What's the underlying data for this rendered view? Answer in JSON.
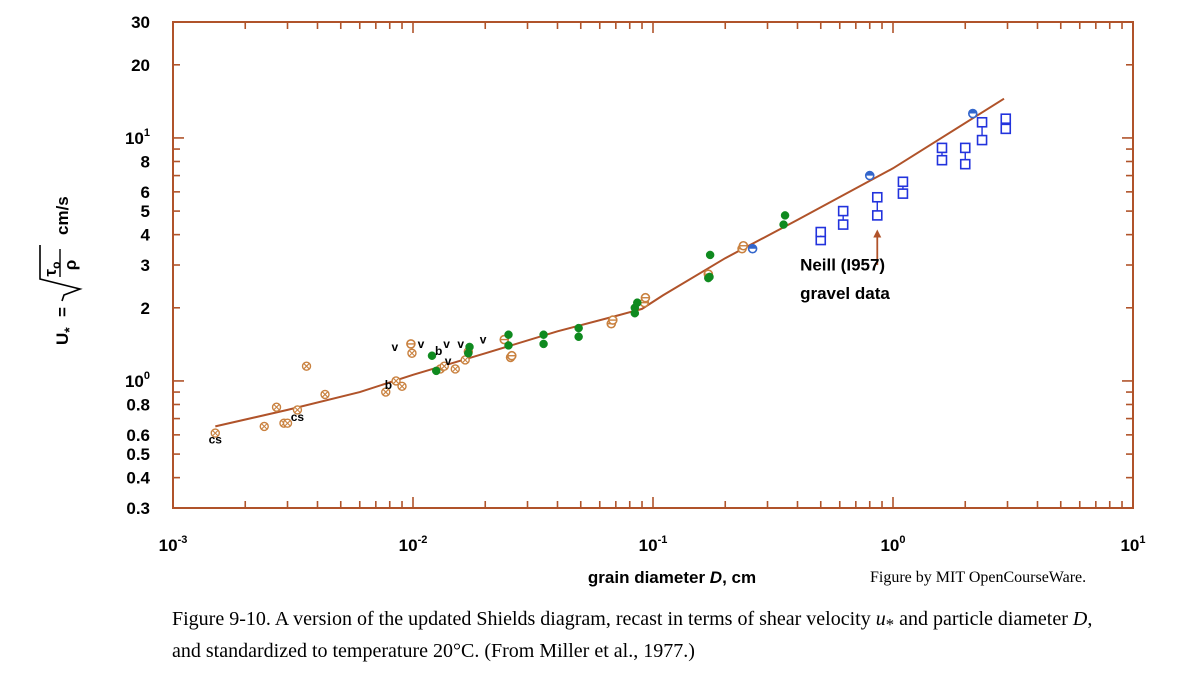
{
  "chart_data": {
    "type": "scatter",
    "x_scale": "log",
    "y_scale": "log",
    "xlim": [
      0.001,
      10
    ],
    "ylim": [
      0.3,
      30
    ],
    "xlabel_prefix": "grain diameter ",
    "xlabel_var": "D",
    "xlabel_unit": ", cm",
    "ylabel_lhs": "U",
    "ylabel_sub": "*",
    "ylabel_tau": "τ",
    "ylabel_tau_sub": "o",
    "ylabel_rho": "ρ",
    "ylabel_unit": "cm/s",
    "x_tick_labels": [
      {
        "value": 0.001,
        "base": "10",
        "exp": "-3"
      },
      {
        "value": 0.01,
        "base": "10",
        "exp": "-2"
      },
      {
        "value": 0.1,
        "base": "10",
        "exp": "-1"
      },
      {
        "value": 1,
        "base": "10",
        "exp": "0"
      },
      {
        "value": 10,
        "base": "10",
        "exp": "1"
      }
    ],
    "y_tick_labels": [
      {
        "value": 0.3,
        "text": "0.3"
      },
      {
        "value": 0.4,
        "text": "0.4"
      },
      {
        "value": 0.5,
        "text": "0.5"
      },
      {
        "value": 0.6,
        "text": "0.6"
      },
      {
        "value": 0.8,
        "text": "0.8"
      },
      {
        "value": 1,
        "base": "10",
        "exp": "0"
      },
      {
        "value": 2,
        "text": "2"
      },
      {
        "value": 3,
        "text": "3"
      },
      {
        "value": 4,
        "text": "4"
      },
      {
        "value": 5,
        "text": "5"
      },
      {
        "value": 6,
        "text": "6"
      },
      {
        "value": 8,
        "text": "8"
      },
      {
        "value": 10,
        "base": "10",
        "exp": "1"
      },
      {
        "value": 20,
        "text": "20"
      },
      {
        "value": 30,
        "text": "30"
      }
    ],
    "curve": {
      "color": "#b0532a",
      "points": [
        [
          0.0015,
          0.65
        ],
        [
          0.003,
          0.76
        ],
        [
          0.006,
          0.9
        ],
        [
          0.01,
          1.06
        ],
        [
          0.02,
          1.3
        ],
        [
          0.04,
          1.6
        ],
        [
          0.07,
          1.85
        ],
        [
          0.09,
          1.98
        ],
        [
          0.11,
          2.25
        ],
        [
          0.2,
          3.2
        ],
        [
          0.4,
          4.6
        ],
        [
          1,
          7.5
        ],
        [
          2.9,
          14.5
        ]
      ]
    },
    "series": [
      {
        "marker": "circle-x",
        "color": "#c9813f",
        "points": [
          [
            0.0015,
            0.61
          ],
          [
            0.0024,
            0.65
          ],
          [
            0.0027,
            0.78
          ],
          [
            0.0029,
            0.67
          ],
          [
            0.003,
            0.67
          ],
          [
            0.0033,
            0.76
          ],
          [
            0.0036,
            1.15
          ],
          [
            0.0043,
            0.88
          ],
          [
            0.0077,
            0.9
          ],
          [
            0.0085,
            1.0
          ],
          [
            0.009,
            0.95
          ],
          [
            0.0099,
            1.3
          ],
          [
            0.013,
            1.12
          ],
          [
            0.0135,
            1.15
          ],
          [
            0.015,
            1.12
          ],
          [
            0.0165,
            1.22
          ],
          [
            0.017,
            1.32
          ]
        ]
      },
      {
        "marker": "circle-tick",
        "color": "#c9813f",
        "points": [
          [
            0.0098,
            1.42
          ],
          [
            0.024,
            1.48
          ],
          [
            0.0255,
            1.25
          ],
          [
            0.0258,
            1.27
          ],
          [
            0.067,
            1.72
          ],
          [
            0.068,
            1.78
          ],
          [
            0.092,
            2.1
          ],
          [
            0.093,
            2.2
          ],
          [
            0.17,
            2.75
          ],
          [
            0.235,
            3.5
          ],
          [
            0.238,
            3.6
          ]
        ]
      },
      {
        "marker": "filled-circle",
        "color": "#0f8a1f",
        "points": [
          [
            0.012,
            1.27
          ],
          [
            0.0125,
            1.1
          ],
          [
            0.017,
            1.3
          ],
          [
            0.0172,
            1.38
          ],
          [
            0.025,
            1.4
          ],
          [
            0.025,
            1.55
          ],
          [
            0.035,
            1.42
          ],
          [
            0.035,
            1.55
          ],
          [
            0.049,
            1.52
          ],
          [
            0.049,
            1.65
          ],
          [
            0.084,
            1.9
          ],
          [
            0.084,
            2.0
          ],
          [
            0.086,
            2.1
          ],
          [
            0.17,
            2.65
          ],
          [
            0.172,
            2.68
          ],
          [
            0.173,
            3.3
          ],
          [
            0.35,
            4.4
          ],
          [
            0.355,
            4.8
          ]
        ]
      },
      {
        "marker": "half-circle",
        "color": "#3366cc",
        "points": [
          [
            0.26,
            3.5
          ],
          [
            0.8,
            7.0
          ],
          [
            2.15,
            12.6
          ]
        ]
      },
      {
        "marker": "square-pair",
        "color": "#2233dd",
        "points": [
          [
            0.5,
            3.8
          ],
          [
            0.5,
            4.1
          ],
          [
            0.62,
            4.4
          ],
          [
            0.62,
            5.0
          ],
          [
            0.86,
            4.8
          ],
          [
            0.86,
            5.7
          ],
          [
            1.1,
            5.9
          ],
          [
            1.1,
            6.6
          ],
          [
            1.6,
            8.1
          ],
          [
            1.6,
            9.1
          ],
          [
            2.0,
            7.8
          ],
          [
            2.0,
            9.1
          ],
          [
            2.35,
            9.8
          ],
          [
            2.35,
            11.6
          ],
          [
            2.95,
            10.9
          ],
          [
            2.95,
            12.0
          ]
        ]
      }
    ],
    "point_labels": [
      {
        "text": "cs",
        "x": 0.0015,
        "y": 0.575
      },
      {
        "text": "cs",
        "x": 0.0033,
        "y": 0.71
      },
      {
        "text": "b",
        "x": 0.0079,
        "y": 0.96
      },
      {
        "text": "v",
        "x": 0.0084,
        "y": 1.38
      },
      {
        "text": "v",
        "x": 0.0108,
        "y": 1.42
      },
      {
        "text": "b",
        "x": 0.0128,
        "y": 1.33
      },
      {
        "text": "v",
        "x": 0.0138,
        "y": 1.42
      },
      {
        "text": "v",
        "x": 0.0158,
        "y": 1.42
      },
      {
        "text": "v",
        "x": 0.0196,
        "y": 1.48
      },
      {
        "text": "v",
        "x": 0.014,
        "y": 1.21
      }
    ],
    "annotation": {
      "line1": "Neill (I957)",
      "line2": "gravel data",
      "arrow_x": 0.86,
      "arrow_y_from": 3.0,
      "arrow_y_to": 4.2,
      "text_x": 0.41,
      "text_y1": 2.85,
      "text_y2": 2.17
    },
    "axis_color": "#b0532a",
    "grid": false
  },
  "credit": "Figure by MIT OpenCourseWare.",
  "caption": {
    "p1": "Figure 9-10.  A version of the updated Shields diagram, recast in terms of shear velocity ",
    "v1": "u",
    "v1sub": "*",
    "p2": " and particle diameter ",
    "v2": "D",
    "p3": ", and standardized to temperature 20°C.  (From Miller et al., 1977.)"
  }
}
